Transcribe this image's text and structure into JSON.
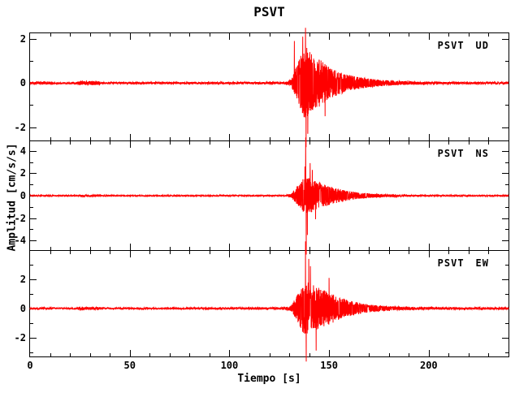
{
  "chart_data": {
    "type": "line",
    "title": "PSVT",
    "xlabel": "Tiempo [s]",
    "ylabel": "Amplitud [cm/s/s]",
    "trace_color": "#ff0000",
    "frame_color": "#000000",
    "background_color": "#ffffff",
    "grid": false,
    "tick_style": "inward",
    "xlim": [
      0,
      240
    ],
    "x_major_ticks": [
      0,
      50,
      100,
      150,
      200
    ],
    "x_minor_step": 10,
    "series": [
      {
        "name": "PSVT UD",
        "station": "PSVT",
        "component": "UD",
        "ylim": [
          -2.6,
          2.25
        ],
        "y_major_ticks": [
          -2,
          0,
          2
        ],
        "y_minor_ticks": [
          -1,
          1
        ],
        "peak_amplitude": 2.5,
        "peak_time": 138.2,
        "event_window": [
          131,
          185
        ],
        "envelope": [
          [
            0,
            0.05
          ],
          [
            4,
            0.06
          ],
          [
            10,
            0.06
          ],
          [
            13,
            0.035
          ],
          [
            23,
            0.035
          ],
          [
            25,
            0.09
          ],
          [
            34,
            0.09
          ],
          [
            36,
            0.04
          ],
          [
            60,
            0.04
          ],
          [
            100,
            0.045
          ],
          [
            128,
            0.05
          ],
          [
            131,
            0.15
          ],
          [
            133,
            0.6
          ],
          [
            135,
            1.1
          ],
          [
            137,
            1.55
          ],
          [
            139,
            1.6
          ],
          [
            141,
            1.35
          ],
          [
            144,
            1.15
          ],
          [
            147,
            0.95
          ],
          [
            150,
            0.75
          ],
          [
            154,
            0.55
          ],
          [
            158,
            0.42
          ],
          [
            163,
            0.3
          ],
          [
            170,
            0.2
          ],
          [
            178,
            0.13
          ],
          [
            186,
            0.09
          ],
          [
            195,
            0.06
          ],
          [
            210,
            0.05
          ],
          [
            240,
            0.045
          ]
        ],
        "spikes": [
          [
            132.6,
            1.9
          ],
          [
            136.8,
            2.1
          ],
          [
            138.2,
            2.5
          ],
          [
            138.45,
            -2.9
          ],
          [
            139.3,
            -2.3
          ],
          [
            148,
            -1.5
          ]
        ],
        "seed": 11
      },
      {
        "name": "PSVT NS",
        "station": "PSVT",
        "component": "NS",
        "ylim": [
          -4.85,
          4.85
        ],
        "y_major_ticks": [
          -4,
          -2,
          0,
          2,
          4
        ],
        "y_minor_ticks": [
          -3,
          -1,
          1,
          3
        ],
        "peak_amplitude": 5.2,
        "peak_time": 138.25,
        "event_window": [
          131,
          185
        ],
        "envelope": [
          [
            0,
            0.05
          ],
          [
            4,
            0.06
          ],
          [
            10,
            0.06
          ],
          [
            13,
            0.04
          ],
          [
            23,
            0.04
          ],
          [
            25,
            0.08
          ],
          [
            34,
            0.08
          ],
          [
            36,
            0.05
          ],
          [
            100,
            0.055
          ],
          [
            128,
            0.06
          ],
          [
            131,
            0.18
          ],
          [
            133,
            0.6
          ],
          [
            135,
            1.0
          ],
          [
            137,
            1.5
          ],
          [
            139,
            1.65
          ],
          [
            142,
            1.4
          ],
          [
            145,
            1.2
          ],
          [
            148,
            1.0
          ],
          [
            151,
            0.8
          ],
          [
            155,
            0.6
          ],
          [
            159,
            0.45
          ],
          [
            164,
            0.3
          ],
          [
            170,
            0.2
          ],
          [
            177,
            0.13
          ],
          [
            185,
            0.09
          ],
          [
            195,
            0.07
          ],
          [
            210,
            0.06
          ],
          [
            240,
            0.055
          ]
        ],
        "spikes": [
          [
            137.9,
            2.6
          ],
          [
            138.25,
            5.2
          ],
          [
            138.5,
            -5.25
          ],
          [
            139.1,
            -3.5
          ],
          [
            140.5,
            2.9
          ],
          [
            141.6,
            2.3
          ],
          [
            143.2,
            -2.1
          ]
        ],
        "seed": 23
      },
      {
        "name": "PSVT EW",
        "station": "PSVT",
        "component": "EW",
        "ylim": [
          -3.3,
          3.95
        ],
        "y_major_ticks": [
          -2,
          0,
          2
        ],
        "y_minor_ticks": [
          -3,
          -1,
          1,
          3
        ],
        "peak_amplitude": 4.6,
        "peak_time": 138.2,
        "event_window": [
          131,
          190
        ],
        "envelope": [
          [
            0,
            0.05
          ],
          [
            4,
            0.065
          ],
          [
            10,
            0.065
          ],
          [
            13,
            0.045
          ],
          [
            23,
            0.045
          ],
          [
            25,
            0.09
          ],
          [
            34,
            0.09
          ],
          [
            36,
            0.05
          ],
          [
            100,
            0.06
          ],
          [
            128,
            0.07
          ],
          [
            131,
            0.2
          ],
          [
            133,
            0.7
          ],
          [
            135,
            1.2
          ],
          [
            137,
            1.7
          ],
          [
            139,
            1.85
          ],
          [
            142,
            1.6
          ],
          [
            145,
            1.4
          ],
          [
            148,
            1.25
          ],
          [
            151,
            1.05
          ],
          [
            155,
            0.8
          ],
          [
            159,
            0.6
          ],
          [
            164,
            0.42
          ],
          [
            170,
            0.28
          ],
          [
            177,
            0.18
          ],
          [
            185,
            0.12
          ],
          [
            195,
            0.09
          ],
          [
            210,
            0.07
          ],
          [
            240,
            0.06
          ]
        ],
        "spikes": [
          [
            138.2,
            4.6
          ],
          [
            138.5,
            -3.65
          ],
          [
            139.8,
            3.4
          ],
          [
            140.6,
            2.9
          ],
          [
            143.5,
            -2.9
          ],
          [
            150,
            2.1
          ]
        ],
        "seed": 37
      }
    ]
  }
}
